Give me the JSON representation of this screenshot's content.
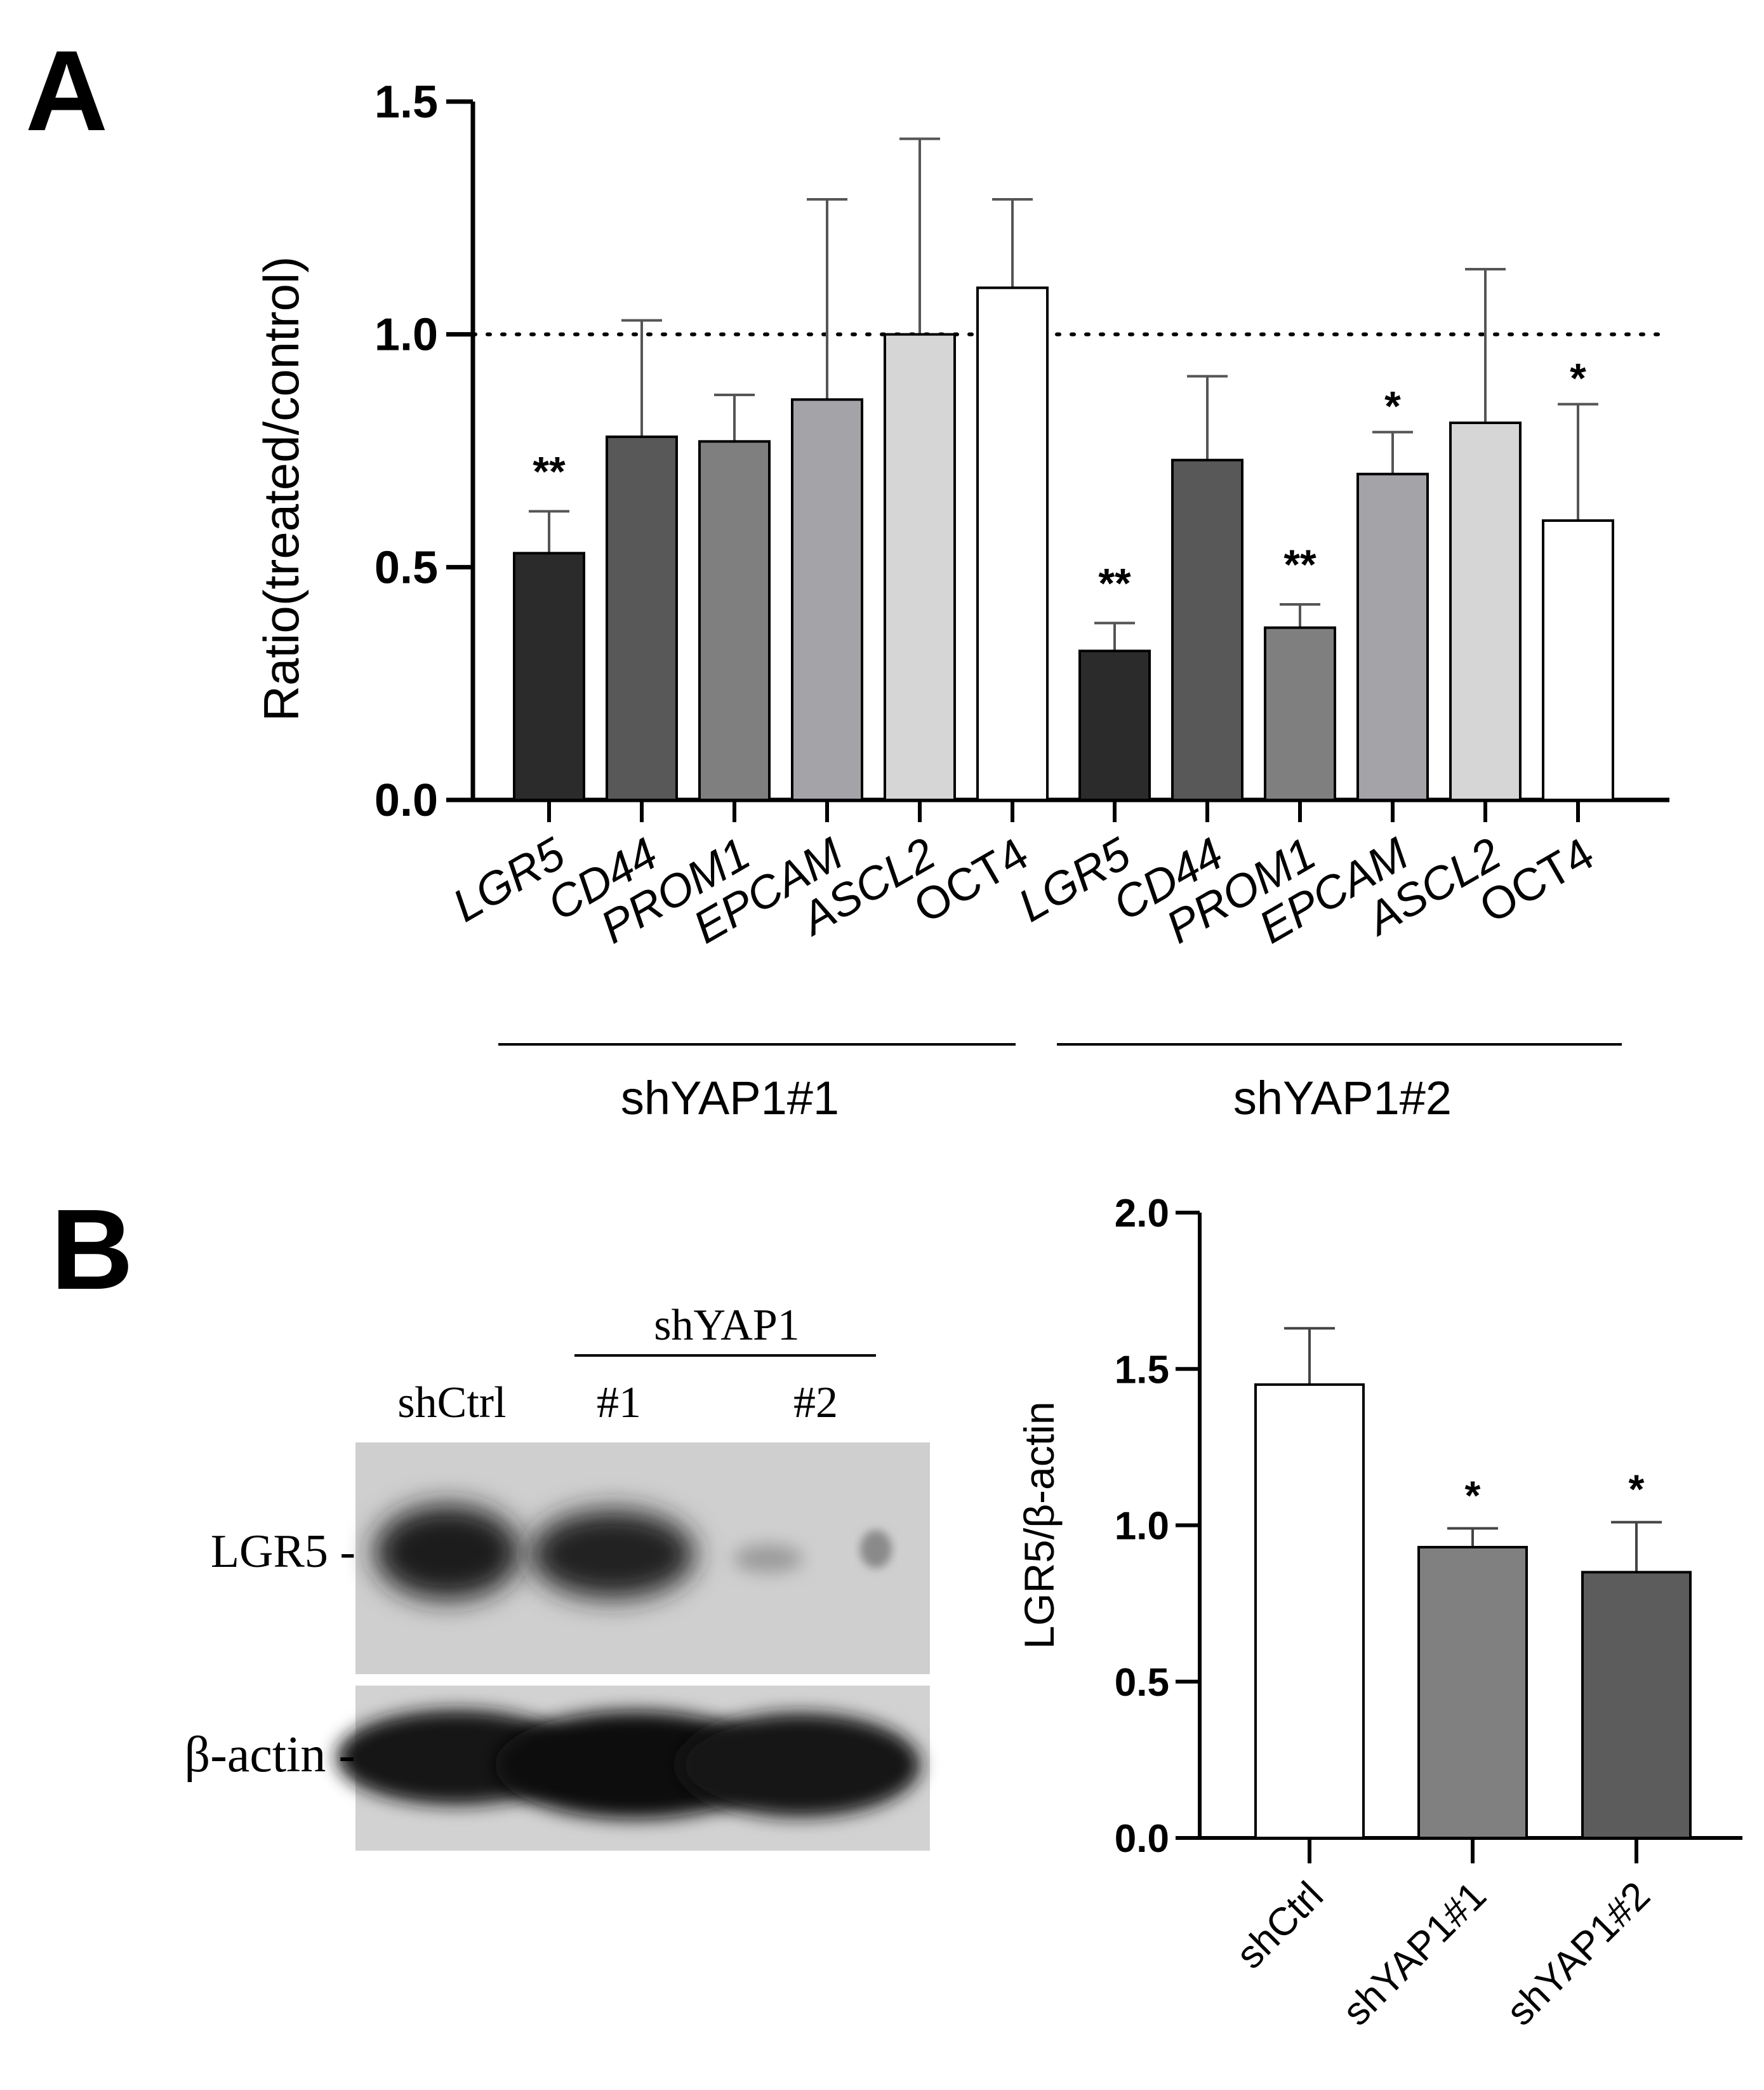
{
  "panel_a_letter": "A",
  "panel_b_letter": "B",
  "chart_data": [
    {
      "type": "bar",
      "panel": "A",
      "ylabel": "Ratio(treated/control)",
      "ylim": [
        0,
        1.5
      ],
      "yticks": [
        "0.0",
        "0.5",
        "1.0",
        "1.5"
      ],
      "reference_line": 1.0,
      "categories": [
        "LGR5",
        "CD44",
        "PROM1",
        "EPCAM",
        "ASCL2",
        "OCT4",
        "LGR5",
        "CD44",
        "PROM1",
        "EPCAM",
        "ASCL2",
        "OCT4"
      ],
      "values": [
        0.53,
        0.78,
        0.77,
        0.86,
        1.0,
        1.1,
        0.32,
        0.73,
        0.37,
        0.7,
        0.81,
        0.6
      ],
      "errors": [
        0.09,
        0.25,
        0.1,
        0.43,
        0.42,
        0.19,
        0.06,
        0.18,
        0.05,
        0.09,
        0.33,
        0.25
      ],
      "significance": [
        "**",
        "",
        "",
        "",
        "",
        "",
        "**",
        "",
        "**",
        "*",
        "",
        "*"
      ],
      "bar_colors": [
        "#2b2b2b",
        "#585858",
        "#7f7f7f",
        "#a4a4a8",
        "#d6d6d6",
        "#ffffff",
        "#2b2b2b",
        "#585858",
        "#7f7f7f",
        "#a4a4a8",
        "#d6d6d6",
        "#ffffff"
      ],
      "groups": [
        {
          "label": "shYAP1#1"
        },
        {
          "label": "shYAP1#2"
        }
      ]
    },
    {
      "type": "bar",
      "panel": "B",
      "ylabel": "LGR5/β-actin",
      "ylim": [
        0,
        2.0
      ],
      "yticks": [
        "0.0",
        "0.5",
        "1.0",
        "1.5",
        "2.0"
      ],
      "categories": [
        "shCtrl",
        "shYAP1#1",
        "shYAP1#2"
      ],
      "values": [
        1.45,
        0.93,
        0.85
      ],
      "errors": [
        0.18,
        0.06,
        0.16
      ],
      "significance": [
        "",
        "*",
        "*"
      ],
      "bar_colors": [
        "#ffffff",
        "#808080",
        "#5c5c5c"
      ]
    }
  ],
  "western_blot": {
    "group_label": "shYAP1",
    "lanes": [
      "shCtrl",
      "#1",
      "#2"
    ],
    "rows": [
      {
        "label": "LGR5 -"
      },
      {
        "label": "β-actin -"
      }
    ]
  }
}
